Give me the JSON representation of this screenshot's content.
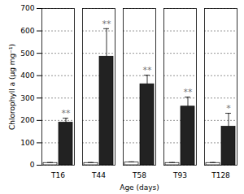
{
  "chart_data": {
    "type": "bar",
    "x_label": "Age (days)",
    "y_label": "Chlorophyll a (μg mg⁻¹)",
    "categories": [
      "T16",
      "T44",
      "T58",
      "T93",
      "T128"
    ],
    "series": [
      {
        "color": "#ffffff",
        "values": [
          10,
          10,
          12,
          10,
          10
        ],
        "errors": [
          2,
          2,
          3,
          2,
          2
        ]
      },
      {
        "color": "#222222",
        "values": [
          190,
          485,
          362,
          262,
          172
        ],
        "errors": [
          20,
          125,
          40,
          42,
          60
        ],
        "annotations": [
          "**",
          "**",
          "**",
          "**",
          "*"
        ]
      }
    ],
    "ylim": [
      0,
      700
    ],
    "yticks": [
      0,
      100,
      200,
      300,
      400,
      500,
      600,
      700
    ],
    "grid": true
  }
}
